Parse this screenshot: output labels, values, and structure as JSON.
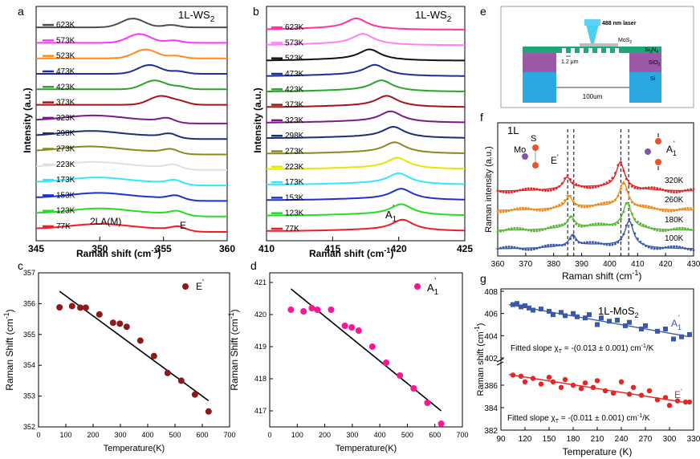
{
  "panel_letters": {
    "a": "a",
    "b": "b",
    "c": "c",
    "d": "d",
    "e": "e",
    "f": "f",
    "g": "g"
  },
  "chart_data": [
    {
      "id": "a",
      "type": "line",
      "title": "1L-WS2",
      "material": "1L-WS",
      "material_sub": "2",
      "xlabel": "Raman shift (cm",
      "xlabel_sup": "-1",
      "xlabel_end": ")",
      "ylabel": "Intensity (a.u.)",
      "xlim": [
        345,
        360
      ],
      "xticks": [
        "345",
        "350",
        "355",
        "360"
      ],
      "peak_label_left": "2LA(M)",
      "peak_label_right": "E",
      "series": [
        {
          "name": "623K",
          "color": "#4d4d4d",
          "peaks": [
            352.6,
            355.6
          ]
        },
        {
          "name": "573K",
          "color": "#ff33ff",
          "peaks": [
            353.1,
            355.8
          ]
        },
        {
          "name": "523K",
          "color": "#ff8c1a",
          "peaks": [
            353.6,
            356.0
          ]
        },
        {
          "name": "473K",
          "color": "#1a2f99",
          "peaks": [
            353.9,
            356.2
          ]
        },
        {
          "name": "423K",
          "color": "#2aa52a",
          "peaks": [
            354.3,
            356.3
          ]
        },
        {
          "name": "373K",
          "color": "#a31515",
          "peaks": [
            354.8,
            356.4
          ]
        },
        {
          "name": "323K",
          "color": "#7a1a8a",
          "peaks": [
            349.5,
            355.2
          ]
        },
        {
          "name": "298K",
          "color": "#1a2f7a",
          "peaks": [
            349.3,
            355.4
          ]
        },
        {
          "name": "273K",
          "color": "#8a8a1a",
          "peaks": [
            349.2,
            355.5
          ]
        },
        {
          "name": "223K",
          "color": "#e0e0e0",
          "peaks": [
            349.6,
            355.7
          ]
        },
        {
          "name": "173K",
          "color": "#33e6ff",
          "peaks": [
            349.8,
            355.8
          ]
        },
        {
          "name": "153K",
          "color": "#1a33cc",
          "peaks": [
            349.9,
            355.9
          ]
        },
        {
          "name": "123K",
          "color": "#22dd22",
          "peaks": [
            350.0,
            356.0
          ]
        },
        {
          "name": "77K",
          "color": "#ee1c24",
          "peaks": [
            350.0,
            356.1
          ]
        }
      ]
    },
    {
      "id": "b",
      "type": "line",
      "title": "1L-WS2",
      "material": "1L-WS",
      "material_sub": "2",
      "xlabel": "Raman shift (cm",
      "xlabel_sup": "-1",
      "xlabel_end": ")",
      "ylabel": "Intensity (a.u.)",
      "xlim": [
        410,
        425
      ],
      "xticks": [
        "410",
        "415",
        "420",
        "425"
      ],
      "peak_label": "A",
      "peak_label_sub": "1",
      "peak_label_sup": "'",
      "series": [
        {
          "name": "623K",
          "color": "#ff3399",
          "peak": 416.8
        },
        {
          "name": "573K",
          "color": "#ff80ff",
          "peak": 417.3
        },
        {
          "name": "523K",
          "color": "#111111",
          "peak": 417.8
        },
        {
          "name": "473K",
          "color": "#1a2f99",
          "peak": 418.2
        },
        {
          "name": "423K",
          "color": "#2aa52a",
          "peak": 418.7
        },
        {
          "name": "373K",
          "color": "#a31515",
          "peak": 419.1
        },
        {
          "name": "323K",
          "color": "#7a1a8a",
          "peak": 419.4
        },
        {
          "name": "298K",
          "color": "#1a2f7a",
          "peak": 419.6
        },
        {
          "name": "273K",
          "color": "#8a8a1a",
          "peak": 419.7
        },
        {
          "name": "223K",
          "color": "#e6e600",
          "peak": 419.9
        },
        {
          "name": "173K",
          "color": "#33e6ff",
          "peak": 420.0
        },
        {
          "name": "153K",
          "color": "#1a33cc",
          "peak": 420.2
        },
        {
          "name": "123K",
          "color": "#22dd22",
          "peak": 420.2
        },
        {
          "name": "77K",
          "color": "#ee1c24",
          "peak": 420.3
        }
      ]
    },
    {
      "id": "c",
      "type": "scatter",
      "legend": "E'",
      "legend_main": "E",
      "legend_sup": "'",
      "xlabel": "Temperature(K)",
      "ylabel": "Raman Shift (cm",
      "ylabel_sup": "-1",
      "ylabel_end": ")",
      "xlim": [
        0,
        700
      ],
      "ylim": [
        352,
        357
      ],
      "xticks": [
        "0",
        "100",
        "200",
        "300",
        "400",
        "500",
        "600",
        "700"
      ],
      "yticks": [
        "352",
        "353",
        "354",
        "355",
        "356",
        "357"
      ],
      "marker_color": "#8b1a1a",
      "x": [
        77,
        123,
        153,
        173,
        223,
        273,
        298,
        323,
        373,
        423,
        473,
        523,
        573,
        623
      ],
      "y": [
        355.88,
        355.92,
        355.87,
        355.87,
        355.65,
        355.38,
        355.35,
        355.25,
        354.8,
        354.3,
        353.75,
        353.5,
        353.05,
        352.5
      ],
      "fit": {
        "x": [
          77,
          623
        ],
        "y": [
          356.4,
          352.85
        ]
      }
    },
    {
      "id": "d",
      "type": "scatter",
      "legend": "A1'",
      "legend_main": "A",
      "legend_sub": "1",
      "legend_sup": "'",
      "xlabel": "Temperature(K)",
      "ylabel": "Raman Shift (cm",
      "ylabel_sup": "-1",
      "ylabel_end": ")",
      "xlim": [
        0,
        700
      ],
      "ylim": [
        416.5,
        421.3
      ],
      "xticks": [
        "0",
        "100",
        "200",
        "300",
        "400",
        "500",
        "600",
        "700"
      ],
      "yticks": [
        "417",
        "418",
        "419",
        "420",
        "421"
      ],
      "marker_color": "#ff1493",
      "x": [
        77,
        123,
        153,
        173,
        223,
        273,
        298,
        323,
        373,
        423,
        473,
        523,
        573,
        623
      ],
      "y": [
        420.15,
        420.1,
        420.2,
        420.15,
        420.15,
        419.65,
        419.6,
        419.5,
        419.0,
        418.5,
        418.1,
        417.7,
        417.25,
        416.6
      ],
      "fit": {
        "x": [
          77,
          623
        ],
        "y": [
          420.8,
          417.0
        ]
      }
    },
    {
      "id": "f",
      "type": "scatter",
      "title": "1L",
      "xlabel": "Raman shift (cm",
      "xlabel_sup": "-1",
      "xlabel_end": ")",
      "ylabel": "Raman intensity (a.u.)",
      "xlim": [
        360,
        430
      ],
      "xticks": [
        "360",
        "370",
        "380",
        "390",
        "400",
        "410",
        "420",
        "430"
      ],
      "mode_left": "E",
      "mode_left_sup": "'",
      "mode_right": "A",
      "mode_right_sub": "1",
      "mode_right_sup": "'",
      "atom_mo": "Mo",
      "atom_s": "S",
      "series": [
        {
          "name": "320K",
          "color": "#e32626",
          "peaks": [
            384.8,
            403.8
          ]
        },
        {
          "name": "260K",
          "color": "#f08a1a",
          "peaks": [
            385.5,
            405.0
          ]
        },
        {
          "name": "180K",
          "color": "#5bb53b",
          "peaks": [
            386.2,
            406.3
          ]
        },
        {
          "name": "100K",
          "color": "#3a5aa8",
          "peaks": [
            386.8,
            407.0
          ]
        }
      ],
      "dashed_lines": [
        385.0,
        387.2,
        404.0,
        406.8
      ]
    },
    {
      "id": "g",
      "type": "scatter",
      "title": "1L-MoS2",
      "title_main": "1L-MoS",
      "title_sub": "2",
      "xlabel": "Temperature (K)",
      "ylabel": "Raman shift (cm",
      "ylabel_sup": "-1",
      "ylabel_end": ")",
      "xlim": [
        90,
        330
      ],
      "xticks": [
        "90",
        "120",
        "150",
        "180",
        "210",
        "240",
        "270",
        "300",
        "330"
      ],
      "yticks_upper": [
        "402",
        "404",
        "406",
        "408"
      ],
      "yticks_lower": [
        "382",
        "384",
        "386"
      ],
      "series": [
        {
          "name": "A1'",
          "name_main": "A",
          "name_sub": "1",
          "name_sup": "'",
          "color": "#3a5aa8",
          "x": [
            105,
            110,
            115,
            120,
            125,
            130,
            140,
            150,
            155,
            165,
            170,
            180,
            185,
            195,
            200,
            210,
            215,
            225,
            235,
            245,
            250,
            265,
            270,
            285,
            295,
            305,
            315,
            325
          ],
          "y": [
            406.8,
            406.9,
            406.6,
            406.7,
            406.5,
            406.3,
            406.4,
            406.2,
            405.9,
            406.1,
            405.8,
            406.0,
            405.7,
            405.6,
            405.9,
            405.0,
            405.6,
            405.3,
            405.4,
            404.9,
            405.2,
            404.6,
            404.9,
            404.4,
            404.6,
            403.7,
            403.9,
            404.1
          ],
          "fit": {
            "x": [
              100,
              325
            ],
            "y": [
              406.8,
              403.9
            ]
          }
        },
        {
          "name": "E'",
          "name_main": "E",
          "name_sub": "",
          "name_sup": "'",
          "color": "#e32626",
          "x": [
            105,
            115,
            120,
            130,
            140,
            150,
            155,
            165,
            170,
            180,
            190,
            195,
            205,
            210,
            220,
            230,
            240,
            250,
            255,
            265,
            275,
            285,
            295,
            300,
            310,
            320,
            325
          ],
          "y": [
            386.9,
            386.8,
            386.3,
            386.6,
            386.1,
            386.7,
            386.3,
            385.8,
            386.5,
            386.0,
            385.7,
            386.2,
            385.8,
            386.4,
            385.5,
            385.3,
            386.3,
            385.2,
            385.8,
            385.1,
            385.5,
            384.7,
            384.9,
            384.2,
            384.6,
            384.5,
            384.5
          ],
          "fit": {
            "x": [
              100,
              325
            ],
            "y": [
              386.95,
              384.4
            ]
          }
        }
      ],
      "slope_upper": "Fitted slope χ",
      "slope_upper_sub": "T",
      "slope_upper_end": " = -(0.013 ± 0.001) cm",
      "slope_upper_sup": "-1",
      "slope_upper_unit": "/K",
      "slope_lower": "Fitted slope χ",
      "slope_lower_sub": "T",
      "slope_lower_end": " = -(0.011 ± 0.001) cm",
      "slope_lower_sup": "-1",
      "slope_lower_unit": "/K"
    }
  ],
  "diagram_e": {
    "laser": "488 nm laser",
    "film": "MoS",
    "film_sub": "2",
    "layer1": "Si",
    "layer1_sub": "3",
    "layer1_mid": "N",
    "layer1_sub2": "4",
    "layer2": "SiO",
    "layer2_sub": "2",
    "layer3": "Si",
    "hole": "1.2 μm",
    "width": "100um"
  }
}
